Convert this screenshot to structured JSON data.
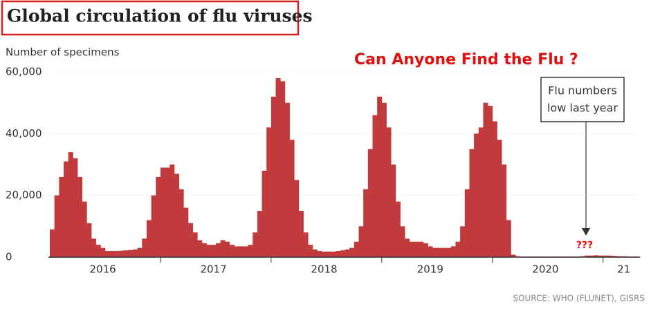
{
  "chart_data": {
    "type": "bar",
    "title": "Global circulation of flu viruses",
    "y_label": "Number of specimens",
    "headline": "Can Anyone Find the Flu ?",
    "annotation": [
      "Flu numbers",
      "low last year"
    ],
    "marker_text": "???",
    "source": "SOURCE: WHO (FLUNET), GISRS",
    "color": "#c23b3c",
    "grid": true,
    "ylim": [
      0,
      60000
    ],
    "yticks": [
      0,
      {
        "value": 20000,
        "label": "20,000"
      },
      {
        "value": 40000,
        "label": "40,000"
      },
      {
        "value": 60000,
        "label": "60,000"
      }
    ],
    "categories": [
      null,
      null,
      null,
      null,
      null,
      null,
      null,
      null,
      null,
      null,
      null,
      "2016",
      null,
      null,
      null,
      null,
      null,
      null,
      null,
      null,
      null,
      null,
      null,
      null,
      null,
      null,
      null,
      null,
      null,
      null,
      null,
      null,
      null,
      null,
      null,
      "2017",
      null,
      null,
      null,
      null,
      null,
      null,
      null,
      null,
      null,
      null,
      null,
      null,
      null,
      null,
      null,
      null,
      null,
      null,
      null,
      null,
      null,
      null,
      null,
      "2018",
      null,
      null,
      null,
      null,
      null,
      null,
      null,
      null,
      null,
      null,
      null,
      null,
      null,
      null,
      null,
      null,
      null,
      null,
      null,
      null,
      null,
      null,
      "2019",
      null,
      null,
      null,
      null,
      null,
      null,
      null,
      null,
      null,
      null,
      null,
      null,
      null,
      null,
      null,
      null,
      null,
      null,
      null,
      null,
      null,
      null,
      null,
      null,
      "2020",
      null,
      null,
      null,
      null,
      null,
      null,
      null,
      null,
      null,
      null,
      null,
      null,
      null,
      null,
      null,
      null,
      "21",
      null,
      null,
      null
    ],
    "values": [
      9000,
      20000,
      26000,
      31000,
      34000,
      32000,
      26000,
      18000,
      11000,
      6000,
      4000,
      3000,
      2000,
      2000,
      2000,
      2100,
      2200,
      2300,
      2500,
      3000,
      6000,
      12000,
      20000,
      26000,
      29000,
      29000,
      30000,
      27000,
      22000,
      16000,
      11000,
      8000,
      5500,
      4500,
      4000,
      4000,
      4500,
      5500,
      5000,
      4000,
      3500,
      3500,
      3500,
      4000,
      8000,
      15000,
      28000,
      42000,
      52000,
      58000,
      57000,
      50000,
      38000,
      25000,
      15000,
      8000,
      4000,
      2500,
      2000,
      1800,
      1800,
      1800,
      2000,
      2200,
      2500,
      3000,
      5000,
      10000,
      22000,
      35000,
      46000,
      52000,
      50000,
      42000,
      30000,
      18000,
      10000,
      6000,
      5000,
      5000,
      5000,
      4500,
      3500,
      3000,
      3000,
      3000,
      3000,
      3500,
      5000,
      10000,
      22000,
      35000,
      40000,
      42000,
      50000,
      49000,
      44000,
      38000,
      30000,
      12000,
      800,
      300,
      200,
      200,
      200,
      200,
      200,
      200,
      200,
      200,
      200,
      200,
      200,
      200,
      200,
      300,
      500,
      500,
      600,
      500,
      500,
      500,
      400,
      300,
      300,
      200,
      200,
      200
    ]
  }
}
